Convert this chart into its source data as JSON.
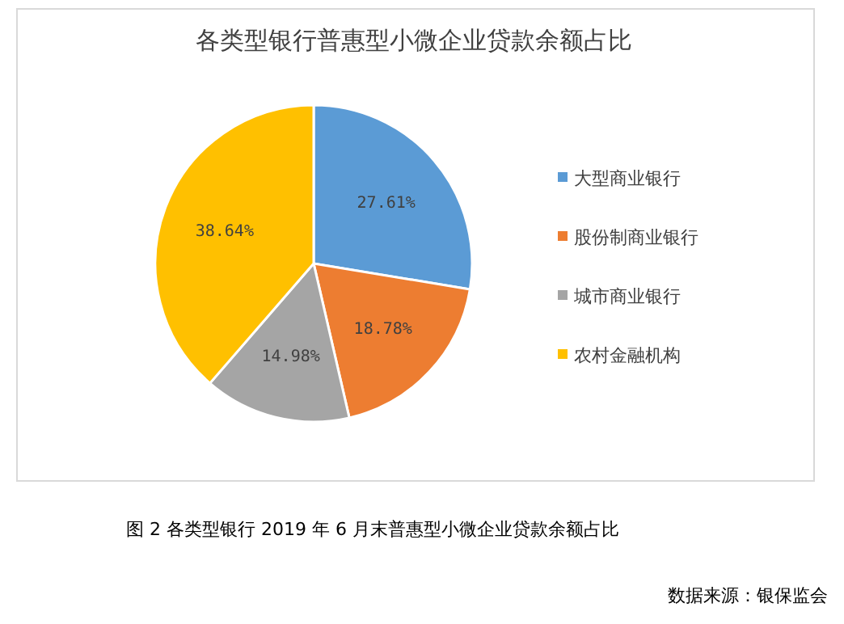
{
  "chart_data": {
    "type": "pie",
    "title": "各类型银行普惠型小微企业贷款余额占比",
    "categories": [
      "大型商业银行",
      "股份制商业银行",
      "城市商业银行",
      "农村金融机构"
    ],
    "values": [
      27.61,
      18.78,
      14.98,
      38.64
    ],
    "value_labels": [
      "27.61%",
      "18.78%",
      "14.98%",
      "38.64%"
    ],
    "colors": [
      "#5b9bd5",
      "#ed7d31",
      "#a5a5a5",
      "#ffc000"
    ],
    "legend": "right",
    "annotations": [
      "图 2 各类型银行 2019 年 6 月末普惠型小微企业贷款余额占比",
      "数据来源：银保监会"
    ]
  }
}
